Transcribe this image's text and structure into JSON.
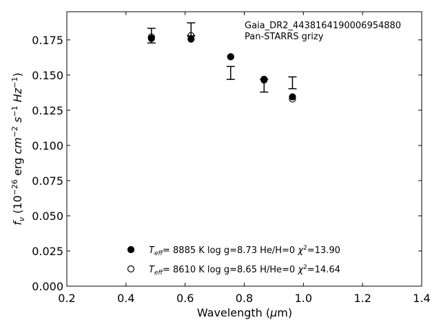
{
  "chart_data": {
    "type": "scatter",
    "title": "",
    "xlabel": "Wavelength (μm)",
    "ylabel": "f_ν (10^−26 erg cm^−2 s^−1 Hz^−1)",
    "xlim": [
      0.2,
      1.4
    ],
    "ylim": [
      0.0,
      0.195
    ],
    "xticks": [
      "0.2",
      "0.4",
      "0.6",
      "0.8",
      "1.0",
      "1.2",
      "1.4"
    ],
    "xtick_values": [
      0.2,
      0.4,
      0.6,
      0.8,
      1.0,
      1.2,
      1.4
    ],
    "yticks": [
      "0.000",
      "0.025",
      "0.050",
      "0.075",
      "0.100",
      "0.125",
      "0.150",
      "0.175"
    ],
    "ytick_values": [
      0.0,
      0.025,
      0.05,
      0.075,
      0.1,
      0.125,
      0.15,
      0.175
    ],
    "grid": false,
    "annotations": [
      "Gaia_DR2_4438164190006954880",
      "Pan-STARRS grizy"
    ],
    "observed": {
      "x": [
        0.486,
        0.62,
        0.754,
        0.867,
        0.963
      ],
      "y": [
        0.178,
        0.1825,
        0.1515,
        0.1425,
        0.1445
      ],
      "yerr": [
        0.0052,
        0.0046,
        0.0046,
        0.0046,
        0.0042
      ]
    },
    "series": [
      {
        "name": "Teff= 8885 K log g=8.73 He/H=0 χ2=13.90",
        "marker": "filled-circle",
        "x": [
          0.486,
          0.62,
          0.754,
          0.867,
          0.963
        ],
        "y": [
          0.176,
          0.1755,
          0.163,
          0.147,
          0.1345
        ]
      },
      {
        "name": "Teff= 8610 K log g=8.65 H/He=0 χ2=14.64",
        "marker": "open-circle",
        "x": [
          0.486,
          0.62,
          0.754,
          0.867,
          0.963
        ],
        "y": [
          0.177,
          0.178,
          0.163,
          0.1465,
          0.133
        ]
      }
    ],
    "legend": {
      "placement": "bottom-center",
      "entries": [
        {
          "teff_value": "8885 K",
          "rest": "log g=8.73  He/H=0",
          "chi": "=13.90"
        },
        {
          "teff_value": "8610 K",
          "rest": "log g=8.65  H/He=0",
          "chi": "=14.64"
        }
      ]
    }
  }
}
